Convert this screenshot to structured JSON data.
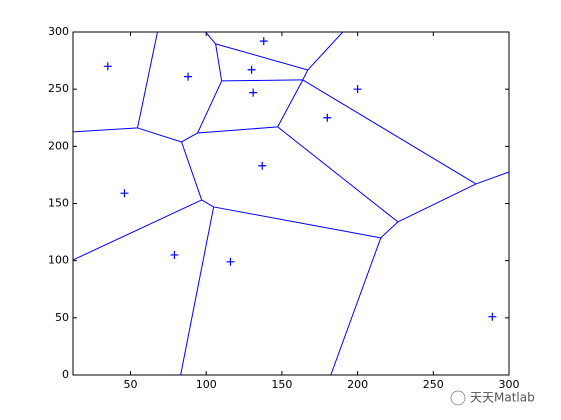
{
  "chart_data": {
    "type": "voronoi",
    "xlim": [
      12,
      300
    ],
    "ylim": [
      0,
      300
    ],
    "xticks": [
      50,
      100,
      150,
      200,
      250,
      300
    ],
    "yticks": [
      0,
      50,
      100,
      150,
      200,
      250,
      300
    ],
    "point_color": "#0000ff",
    "edge_color": "#0000ff",
    "points": {
      "x": [
        35,
        88,
        138,
        130,
        131,
        200,
        180,
        137,
        46,
        79,
        116,
        289
      ],
      "y": [
        270,
        261,
        292,
        267,
        247,
        250,
        225,
        183,
        159,
        105,
        99,
        51
      ]
    },
    "segments": [
      [
        67.8,
        300,
        54.6,
        216.1
      ],
      [
        54.6,
        216.1,
        12,
        212.6
      ],
      [
        54.6,
        216.1,
        83.7,
        203.8
      ],
      [
        83.7,
        203.8,
        94.3,
        211.7
      ],
      [
        83.7,
        203.8,
        97,
        153.1
      ],
      [
        99.6,
        300,
        106.2,
        289.6
      ],
      [
        106.2,
        289.6,
        167.1,
        266.8
      ],
      [
        106.2,
        289.6,
        110.2,
        257.2
      ],
      [
        110.2,
        257.2,
        94.3,
        211.7
      ],
      [
        110.2,
        257.2,
        163.8,
        258.1
      ],
      [
        94.3,
        211.7,
        147.2,
        217
      ],
      [
        167.1,
        266.8,
        190.2,
        300
      ],
      [
        167.1,
        266.8,
        163.8,
        258.1
      ],
      [
        163.8,
        258.1,
        147.2,
        217
      ],
      [
        163.8,
        258.1,
        278.2,
        167.1
      ],
      [
        147.2,
        217,
        226.6,
        133.9
      ],
      [
        226.6,
        133.9,
        278.2,
        167.1
      ],
      [
        278.2,
        167.1,
        300,
        177.6
      ],
      [
        226.6,
        133.9,
        215.3,
        119.9
      ],
      [
        215.3,
        119.9,
        182.3,
        0
      ],
      [
        215.3,
        119.9,
        104.9,
        147
      ],
      [
        104.9,
        147,
        83.1,
        0
      ],
      [
        104.9,
        147,
        97,
        153.1
      ],
      [
        97,
        153.1,
        12,
        100.6
      ]
    ]
  },
  "watermark": "天天Matlab"
}
